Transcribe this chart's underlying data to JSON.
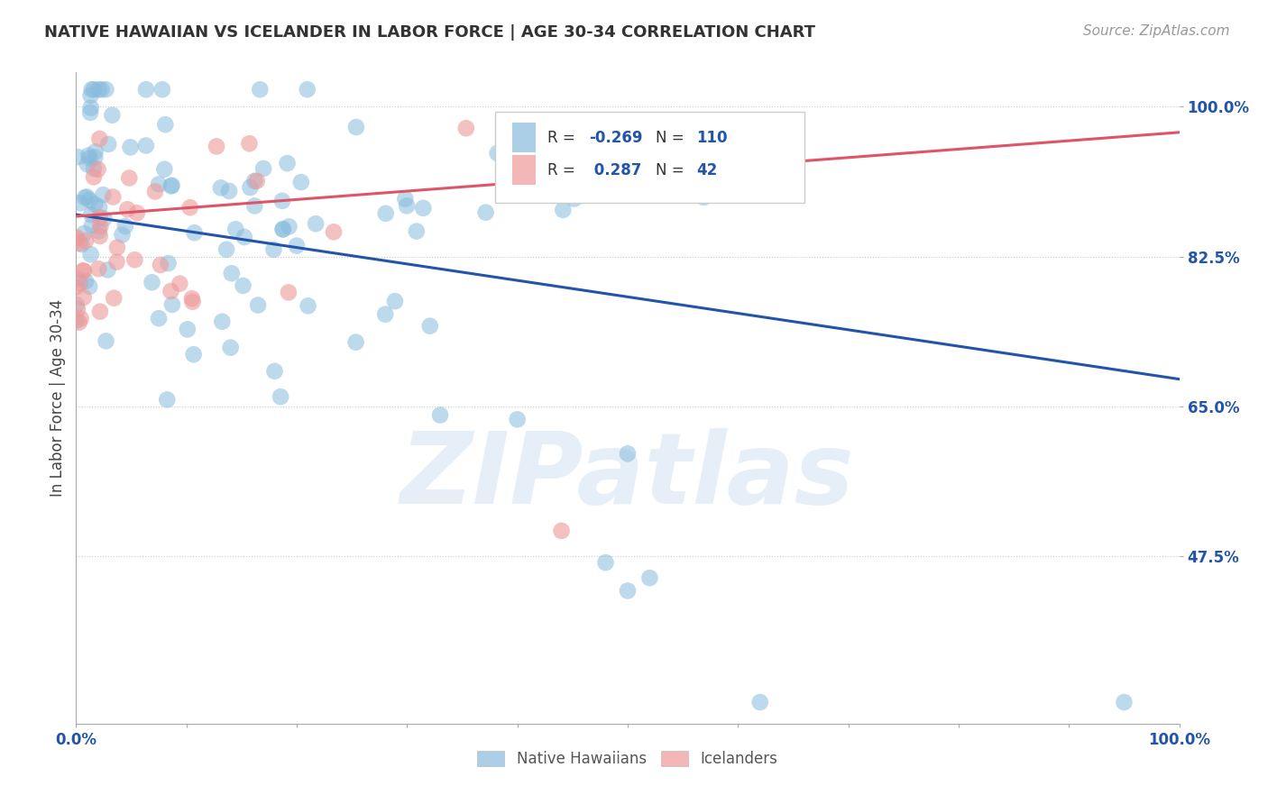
{
  "title": "NATIVE HAWAIIAN VS ICELANDER IN LABOR FORCE | AGE 30-34 CORRELATION CHART",
  "source": "Source: ZipAtlas.com",
  "ylabel": "In Labor Force | Age 30-34",
  "xlim": [
    0.0,
    1.0
  ],
  "ylim": [
    0.28,
    1.04
  ],
  "yticks": [
    0.475,
    0.65,
    0.825,
    1.0
  ],
  "ytick_labels": [
    "47.5%",
    "65.0%",
    "82.5%",
    "100.0%"
  ],
  "xticks": [
    0.0,
    0.1,
    0.2,
    0.3,
    0.4,
    0.5,
    0.6,
    0.7,
    0.8,
    0.9,
    1.0
  ],
  "xtick_labels": [
    "0.0%",
    "",
    "",
    "",
    "",
    "",
    "",
    "",
    "",
    "",
    "100.0%"
  ],
  "legend_label1": "Native Hawaiians",
  "legend_label2": "Icelanders",
  "r1": -0.269,
  "n1": 110,
  "r2": 0.287,
  "n2": 42,
  "color_blue": "#88BBDD",
  "color_pink": "#EE9999",
  "color_trendline_blue": "#2255AA",
  "color_trendline_pink": "#DD5566",
  "background_color": "#FFFFFF",
  "watermark": "ZIPatlas",
  "blue_trend_start": 0.874,
  "blue_trend_end": 0.682,
  "pink_trend_start": 0.872,
  "pink_trend_end": 0.97
}
